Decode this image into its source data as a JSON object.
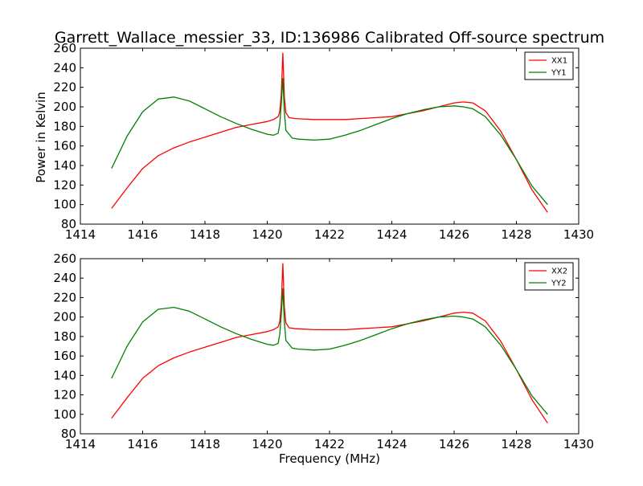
{
  "title": "Garrett_Wallace_messier_33, ID:136986 Calibrated Off-source spectrum",
  "ylabel": "Power in Kelvin",
  "xlabel": "Frequency (MHz)",
  "chart_data": [
    {
      "type": "line",
      "xlim": [
        1414,
        1430
      ],
      "ylim": [
        80,
        260
      ],
      "x_ticks": [
        "1414",
        "1416",
        "1418",
        "1420",
        "1422",
        "1424",
        "1426",
        "1428",
        "1430"
      ],
      "y_ticks": [
        "80",
        "100",
        "120",
        "140",
        "160",
        "180",
        "200",
        "220",
        "240",
        "260"
      ],
      "legend": "top-right",
      "series": [
        {
          "name": "XX1",
          "color": "#ff0000",
          "x": [
            1415.0,
            1415.5,
            1416.0,
            1416.5,
            1417.0,
            1417.5,
            1418.0,
            1418.5,
            1419.0,
            1419.5,
            1420.0,
            1420.2,
            1420.35,
            1420.4,
            1420.45,
            1420.5,
            1420.55,
            1420.6,
            1420.7,
            1420.9,
            1421.5,
            1422.0,
            1422.5,
            1423.0,
            1423.5,
            1424.0,
            1424.5,
            1425.0,
            1425.5,
            1426.0,
            1426.3,
            1426.6,
            1427.0,
            1427.5,
            1428.0,
            1428.5,
            1429.0
          ],
          "y": [
            96,
            117,
            137,
            150,
            158,
            164,
            169,
            174,
            179,
            182,
            185,
            187,
            190,
            195,
            212,
            255,
            210,
            194,
            189,
            188,
            187,
            187,
            187,
            188,
            189,
            190,
            193,
            196,
            200,
            204,
            205,
            204,
            196,
            175,
            146,
            115,
            92
          ]
        },
        {
          "name": "YY1",
          "color": "#008000",
          "x": [
            1415.0,
            1415.5,
            1416.0,
            1416.5,
            1417.0,
            1417.5,
            1418.0,
            1418.5,
            1419.0,
            1419.5,
            1420.0,
            1420.2,
            1420.35,
            1420.4,
            1420.45,
            1420.5,
            1420.55,
            1420.6,
            1420.8,
            1421.0,
            1421.5,
            1422.0,
            1422.5,
            1423.0,
            1423.5,
            1424.0,
            1424.5,
            1425.0,
            1425.5,
            1426.0,
            1426.3,
            1426.6,
            1427.0,
            1427.5,
            1428.0,
            1428.5,
            1429.0
          ],
          "y": [
            137,
            170,
            195,
            208,
            210,
            206,
            198,
            190,
            183,
            177,
            172,
            171,
            173,
            182,
            202,
            229,
            195,
            176,
            168,
            167,
            166,
            167,
            171,
            176,
            182,
            188,
            193,
            197,
            200,
            201,
            200,
            198,
            190,
            171,
            146,
            119,
            100
          ]
        }
      ]
    },
    {
      "type": "line",
      "xlim": [
        1414,
        1430
      ],
      "ylim": [
        80,
        260
      ],
      "x_ticks": [
        "1414",
        "1416",
        "1418",
        "1420",
        "1422",
        "1424",
        "1426",
        "1428",
        "1430"
      ],
      "y_ticks": [
        "80",
        "100",
        "120",
        "140",
        "160",
        "180",
        "200",
        "220",
        "240",
        "260"
      ],
      "legend": "top-right",
      "series": [
        {
          "name": "XX2",
          "color": "#ff0000",
          "x": [
            1415.0,
            1415.5,
            1416.0,
            1416.5,
            1417.0,
            1417.5,
            1418.0,
            1418.5,
            1419.0,
            1419.5,
            1420.0,
            1420.2,
            1420.35,
            1420.4,
            1420.45,
            1420.5,
            1420.55,
            1420.6,
            1420.7,
            1420.9,
            1421.5,
            1422.0,
            1422.5,
            1423.0,
            1423.5,
            1424.0,
            1424.5,
            1425.0,
            1425.5,
            1426.0,
            1426.3,
            1426.6,
            1427.0,
            1427.5,
            1428.0,
            1428.5,
            1429.0
          ],
          "y": [
            96,
            117,
            137,
            150,
            158,
            164,
            169,
            174,
            179,
            182,
            185,
            187,
            190,
            195,
            212,
            255,
            210,
            194,
            189,
            188,
            187,
            187,
            187,
            188,
            189,
            190,
            193,
            196,
            200,
            204,
            205,
            204,
            196,
            175,
            146,
            115,
            91
          ]
        },
        {
          "name": "YY2",
          "color": "#008000",
          "x": [
            1415.0,
            1415.5,
            1416.0,
            1416.5,
            1417.0,
            1417.5,
            1418.0,
            1418.5,
            1419.0,
            1419.5,
            1420.0,
            1420.2,
            1420.35,
            1420.4,
            1420.45,
            1420.5,
            1420.55,
            1420.6,
            1420.8,
            1421.0,
            1421.5,
            1422.0,
            1422.5,
            1423.0,
            1423.5,
            1424.0,
            1424.5,
            1425.0,
            1425.5,
            1426.0,
            1426.3,
            1426.6,
            1427.0,
            1427.5,
            1428.0,
            1428.5,
            1429.0
          ],
          "y": [
            137,
            170,
            195,
            208,
            210,
            206,
            198,
            190,
            183,
            177,
            172,
            171,
            173,
            182,
            202,
            229,
            195,
            176,
            168,
            167,
            166,
            167,
            171,
            176,
            182,
            188,
            193,
            197,
            200,
            201,
            200,
            198,
            190,
            171,
            146,
            119,
            100
          ]
        }
      ]
    }
  ]
}
